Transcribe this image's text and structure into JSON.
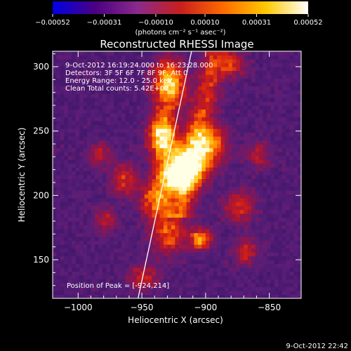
{
  "chart_data": {
    "type": "heatmap",
    "title": "Reconstructed RHESSI Image",
    "xlabel": "Heliocentric X (arcsec)",
    "ylabel": "Heliocentric Y (arcsec)",
    "xlim": [
      -1020,
      -825
    ],
    "ylim": [
      120,
      312
    ],
    "x_ticks": [
      -1000,
      -950,
      -900,
      -850
    ],
    "x_tick_labels": [
      "−1000",
      "−950",
      "−900",
      "−850"
    ],
    "y_ticks": [
      150,
      200,
      250,
      300
    ],
    "y_tick_labels": [
      "150",
      "200",
      "250",
      "300"
    ],
    "colorbar": {
      "range": [
        -0.00052,
        0.00052
      ],
      "ticks": [
        -0.00052,
        -0.00031,
        -0.0001,
        0.0001,
        0.00031,
        0.00052
      ],
      "tick_labels": [
        "−0.00052",
        "−0.00031",
        "−0.00010",
        "0.00010",
        "0.00031",
        "0.00052"
      ],
      "unit_label": "(photons cm⁻² s⁻¹ asec⁻²)",
      "colors": [
        "#0000e6",
        "#4b0082",
        "#8b2a8b",
        "#c81e1e",
        "#ff6a00",
        "#ffc800",
        "#ffffff"
      ]
    },
    "annotations": [
      "9-Oct-2012 16:19:24.000 to 16:23:28.000",
      "Detectors: 3F 5F 6F 7F 8F 9F, Att 0",
      "Energy Range: 12.0 - 25.0 keV",
      "Clean     Total counts: 5.42E+03"
    ],
    "peak_label": "Position of Peak = [-924,214]",
    "peak": [
      -924,
      214
    ],
    "limb_line": [
      [
        -953,
        120
      ],
      [
        -911,
        312
      ]
    ],
    "sources": [
      {
        "x": -924,
        "y": 214,
        "level": 1.0,
        "rx": 14,
        "ry": 12
      },
      {
        "x": -935,
        "y": 245,
        "level": 0.95,
        "rx": 10,
        "ry": 16
      },
      {
        "x": -930,
        "y": 285,
        "level": 0.75,
        "rx": 12,
        "ry": 18
      },
      {
        "x": -915,
        "y": 225,
        "level": 0.6,
        "rx": 18,
        "ry": 14
      },
      {
        "x": -900,
        "y": 240,
        "level": 0.5,
        "rx": 14,
        "ry": 14
      },
      {
        "x": -940,
        "y": 195,
        "level": 0.55,
        "rx": 12,
        "ry": 12
      },
      {
        "x": -905,
        "y": 165,
        "level": 0.6,
        "rx": 8,
        "ry": 8
      },
      {
        "x": -930,
        "y": 170,
        "level": 0.45,
        "rx": 14,
        "ry": 16
      },
      {
        "x": -965,
        "y": 210,
        "level": 0.35,
        "rx": 10,
        "ry": 12
      },
      {
        "x": -875,
        "y": 190,
        "level": 0.35,
        "rx": 12,
        "ry": 12
      },
      {
        "x": -870,
        "y": 155,
        "level": 0.3,
        "rx": 10,
        "ry": 10
      },
      {
        "x": -880,
        "y": 300,
        "level": 0.35,
        "rx": 10,
        "ry": 10
      },
      {
        "x": -980,
        "y": 180,
        "level": 0.25,
        "rx": 10,
        "ry": 10
      },
      {
        "x": -985,
        "y": 230,
        "level": 0.25,
        "rx": 10,
        "ry": 10
      },
      {
        "x": -950,
        "y": 135,
        "level": 0.3,
        "rx": 12,
        "ry": 10
      },
      {
        "x": -860,
        "y": 230,
        "level": 0.25,
        "rx": 10,
        "ry": 10
      }
    ]
  },
  "footer_timestamp": "9-Oct-2012 22:42"
}
